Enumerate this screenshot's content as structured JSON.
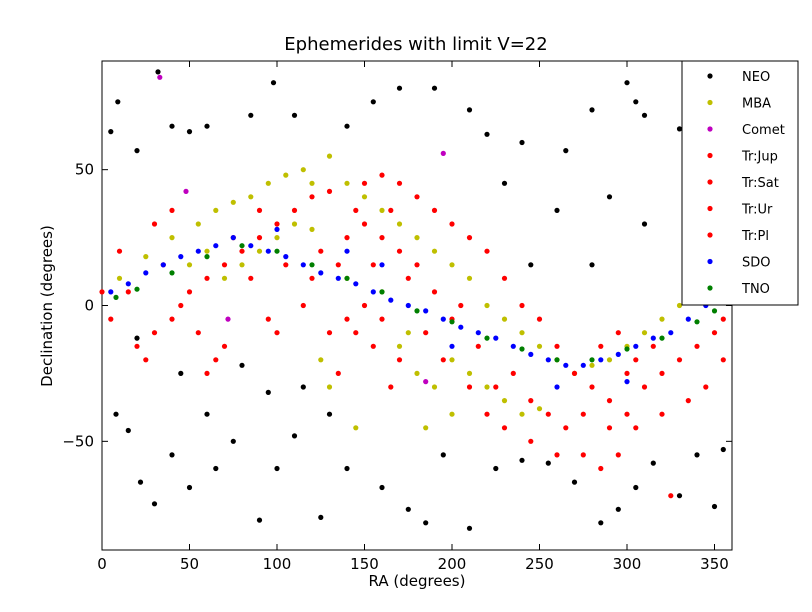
{
  "chart_data": {
    "type": "scatter",
    "title": "Ephemerides with limit V=22",
    "xlabel": "RA (degrees)",
    "ylabel": "Declination (degrees)",
    "xlim": [
      0,
      360
    ],
    "ylim": [
      -90,
      90
    ],
    "xticks": [
      0,
      50,
      100,
      150,
      200,
      250,
      300,
      350
    ],
    "yticks": [
      -50,
      0,
      50
    ],
    "grid": false,
    "legend_position": "top-right",
    "series": [
      {
        "name": "NEO",
        "color": "#000000",
        "points": [
          [
            5,
            64
          ],
          [
            9,
            75
          ],
          [
            20,
            57
          ],
          [
            32,
            86
          ],
          [
            40,
            66
          ],
          [
            50,
            64
          ],
          [
            60,
            66
          ],
          [
            85,
            70
          ],
          [
            98,
            82
          ],
          [
            110,
            70
          ],
          [
            140,
            66
          ],
          [
            155,
            75
          ],
          [
            170,
            80
          ],
          [
            190,
            80
          ],
          [
            210,
            72
          ],
          [
            220,
            63
          ],
          [
            240,
            60
          ],
          [
            265,
            57
          ],
          [
            280,
            72
          ],
          [
            300,
            82
          ],
          [
            305,
            75
          ],
          [
            310,
            70
          ],
          [
            330,
            65
          ],
          [
            345,
            62
          ],
          [
            350,
            50
          ],
          [
            8,
            -40
          ],
          [
            15,
            -46
          ],
          [
            22,
            -65
          ],
          [
            30,
            -73
          ],
          [
            40,
            -55
          ],
          [
            50,
            -67
          ],
          [
            65,
            -60
          ],
          [
            75,
            -50
          ],
          [
            90,
            -79
          ],
          [
            100,
            -60
          ],
          [
            110,
            -48
          ],
          [
            125,
            -78
          ],
          [
            140,
            -60
          ],
          [
            160,
            -67
          ],
          [
            175,
            -75
          ],
          [
            185,
            -80
          ],
          [
            195,
            -55
          ],
          [
            210,
            -82
          ],
          [
            225,
            -60
          ],
          [
            240,
            -57
          ],
          [
            255,
            -58
          ],
          [
            270,
            -65
          ],
          [
            285,
            -80
          ],
          [
            295,
            -75
          ],
          [
            305,
            -67
          ],
          [
            315,
            -58
          ],
          [
            330,
            -70
          ],
          [
            340,
            -55
          ],
          [
            350,
            -74
          ],
          [
            355,
            -53
          ],
          [
            20,
            -12
          ],
          [
            45,
            -25
          ],
          [
            60,
            -40
          ],
          [
            80,
            -22
          ],
          [
            95,
            -32
          ],
          [
            115,
            -30
          ],
          [
            130,
            -40
          ],
          [
            290,
            40
          ],
          [
            310,
            30
          ],
          [
            335,
            25
          ],
          [
            245,
            15
          ],
          [
            260,
            35
          ],
          [
            280,
            15
          ],
          [
            230,
            45
          ]
        ]
      },
      {
        "name": "MBA",
        "color": "#bfbf00",
        "points": [
          [
            10,
            10
          ],
          [
            25,
            18
          ],
          [
            40,
            25
          ],
          [
            55,
            30
          ],
          [
            65,
            35
          ],
          [
            75,
            38
          ],
          [
            85,
            40
          ],
          [
            95,
            45
          ],
          [
            105,
            48
          ],
          [
            115,
            50
          ],
          [
            120,
            45
          ],
          [
            130,
            55
          ],
          [
            140,
            45
          ],
          [
            150,
            40
          ],
          [
            160,
            35
          ],
          [
            170,
            30
          ],
          [
            180,
            25
          ],
          [
            190,
            20
          ],
          [
            200,
            15
          ],
          [
            210,
            10
          ],
          [
            220,
            0
          ],
          [
            230,
            -5
          ],
          [
            240,
            -10
          ],
          [
            250,
            -15
          ],
          [
            260,
            -20
          ],
          [
            270,
            -25
          ],
          [
            280,
            -22
          ],
          [
            290,
            -20
          ],
          [
            300,
            -15
          ],
          [
            310,
            -10
          ],
          [
            320,
            -5
          ],
          [
            330,
            0
          ],
          [
            340,
            5
          ],
          [
            350,
            8
          ],
          [
            100,
            25
          ],
          [
            110,
            30
          ],
          [
            120,
            28
          ],
          [
            90,
            20
          ],
          [
            80,
            15
          ],
          [
            70,
            10
          ],
          [
            200,
            -20
          ],
          [
            210,
            -25
          ],
          [
            220,
            -30
          ],
          [
            230,
            -35
          ],
          [
            240,
            -40
          ],
          [
            250,
            -38
          ],
          [
            180,
            -25
          ],
          [
            170,
            -15
          ],
          [
            190,
            -30
          ],
          [
            200,
            -40
          ],
          [
            60,
            20
          ],
          [
            50,
            15
          ],
          [
            140,
            10
          ],
          [
            160,
            5
          ],
          [
            175,
            -10
          ],
          [
            185,
            -45
          ],
          [
            145,
            -45
          ],
          [
            125,
            -20
          ],
          [
            130,
            -30
          ]
        ]
      },
      {
        "name": "Comet",
        "color": "#bf00bf",
        "points": [
          [
            33,
            84
          ],
          [
            48,
            42
          ],
          [
            195,
            56
          ],
          [
            72,
            -5
          ],
          [
            185,
            -28
          ]
        ]
      },
      {
        "name": "Tr:Jup",
        "color": "#ff0000",
        "points": [
          [
            140,
            25
          ],
          [
            150,
            30
          ],
          [
            160,
            25
          ],
          [
            170,
            20
          ],
          [
            155,
            15
          ],
          [
            145,
            35
          ],
          [
            165,
            35
          ],
          [
            175,
            10
          ],
          [
            135,
            15
          ],
          [
            150,
            0
          ],
          [
            160,
            -5
          ],
          [
            145,
            -10
          ],
          [
            140,
            -5
          ],
          [
            155,
            -15
          ],
          [
            170,
            -20
          ],
          [
            280,
            -30
          ],
          [
            290,
            -35
          ],
          [
            300,
            -25
          ],
          [
            285,
            -15
          ],
          [
            295,
            -10
          ],
          [
            305,
            -20
          ],
          [
            275,
            -40
          ],
          [
            290,
            -45
          ],
          [
            300,
            -40
          ],
          [
            310,
            -30
          ],
          [
            270,
            -25
          ],
          [
            315,
            -15
          ]
        ]
      },
      {
        "name": "Tr:Sat",
        "color": "#ff0000",
        "points": [
          [
            20,
            -15
          ],
          [
            30,
            -10
          ],
          [
            40,
            -5
          ],
          [
            50,
            5
          ],
          [
            60,
            10
          ],
          [
            70,
            15
          ],
          [
            80,
            20
          ],
          [
            90,
            25
          ],
          [
            100,
            30
          ],
          [
            110,
            35
          ],
          [
            120,
            40
          ],
          [
            130,
            42
          ],
          [
            180,
            40
          ],
          [
            190,
            35
          ],
          [
            200,
            30
          ],
          [
            210,
            25
          ],
          [
            220,
            20
          ],
          [
            230,
            10
          ],
          [
            240,
            0
          ],
          [
            250,
            -5
          ],
          [
            260,
            -15
          ],
          [
            320,
            -25
          ],
          [
            330,
            -20
          ],
          [
            340,
            -15
          ],
          [
            350,
            -10
          ],
          [
            355,
            -20
          ]
        ]
      },
      {
        "name": "Tr:Ur",
        "color": "#ff0000",
        "points": [
          [
            5,
            -5
          ],
          [
            15,
            5
          ],
          [
            25,
            -20
          ],
          [
            35,
            15
          ],
          [
            45,
            0
          ],
          [
            55,
            -10
          ],
          [
            65,
            -20
          ],
          [
            75,
            25
          ],
          [
            85,
            10
          ],
          [
            95,
            -5
          ],
          [
            105,
            15
          ],
          [
            115,
            0
          ],
          [
            125,
            20
          ],
          [
            135,
            -25
          ],
          [
            165,
            -30
          ],
          [
            185,
            -10
          ],
          [
            195,
            -20
          ],
          [
            205,
            0
          ],
          [
            215,
            -15
          ],
          [
            225,
            -30
          ],
          [
            235,
            -25
          ],
          [
            245,
            -35
          ],
          [
            255,
            -40
          ],
          [
            265,
            -45
          ],
          [
            275,
            -55
          ],
          [
            285,
            -60
          ],
          [
            295,
            -55
          ],
          [
            305,
            -45
          ]
        ]
      },
      {
        "name": "Tr:Pl",
        "color": "#ff0000",
        "points": [
          [
            0,
            5
          ],
          [
            10,
            20
          ],
          [
            30,
            30
          ],
          [
            40,
            35
          ],
          [
            60,
            -25
          ],
          [
            70,
            -15
          ],
          [
            90,
            35
          ],
          [
            100,
            -10
          ],
          [
            120,
            10
          ],
          [
            130,
            -10
          ],
          [
            150,
            45
          ],
          [
            160,
            48
          ],
          [
            170,
            45
          ],
          [
            180,
            15
          ],
          [
            190,
            5
          ],
          [
            200,
            -5
          ],
          [
            210,
            -30
          ],
          [
            220,
            -40
          ],
          [
            230,
            -45
          ],
          [
            245,
            -50
          ],
          [
            260,
            -55
          ],
          [
            320,
            -40
          ],
          [
            325,
            -70
          ],
          [
            335,
            -35
          ],
          [
            345,
            -30
          ],
          [
            355,
            -5
          ]
        ]
      },
      {
        "name": "SDO",
        "color": "#0000ff",
        "points": [
          [
            5,
            5
          ],
          [
            15,
            8
          ],
          [
            25,
            12
          ],
          [
            35,
            15
          ],
          [
            45,
            18
          ],
          [
            55,
            20
          ],
          [
            65,
            22
          ],
          [
            75,
            25
          ],
          [
            85,
            22
          ],
          [
            95,
            20
          ],
          [
            105,
            18
          ],
          [
            115,
            15
          ],
          [
            125,
            12
          ],
          [
            135,
            10
          ],
          [
            145,
            8
          ],
          [
            155,
            5
          ],
          [
            165,
            2
          ],
          [
            175,
            0
          ],
          [
            185,
            -2
          ],
          [
            195,
            -5
          ],
          [
            205,
            -8
          ],
          [
            215,
            -10
          ],
          [
            225,
            -12
          ],
          [
            235,
            -15
          ],
          [
            245,
            -18
          ],
          [
            255,
            -20
          ],
          [
            265,
            -22
          ],
          [
            275,
            -22
          ],
          [
            285,
            -20
          ],
          [
            295,
            -18
          ],
          [
            305,
            -15
          ],
          [
            315,
            -12
          ],
          [
            325,
            -10
          ],
          [
            335,
            -5
          ],
          [
            345,
            0
          ],
          [
            355,
            5
          ],
          [
            100,
            28
          ],
          [
            140,
            20
          ],
          [
            160,
            15
          ],
          [
            200,
            -15
          ],
          [
            260,
            -30
          ],
          [
            300,
            -28
          ]
        ]
      },
      {
        "name": "TNO",
        "color": "#007f00",
        "points": [
          [
            8,
            3
          ],
          [
            20,
            6
          ],
          [
            40,
            12
          ],
          [
            60,
            18
          ],
          [
            80,
            22
          ],
          [
            100,
            20
          ],
          [
            120,
            15
          ],
          [
            140,
            10
          ],
          [
            160,
            5
          ],
          [
            180,
            -2
          ],
          [
            200,
            -6
          ],
          [
            220,
            -12
          ],
          [
            240,
            -16
          ],
          [
            260,
            -20
          ],
          [
            280,
            -20
          ],
          [
            300,
            -16
          ],
          [
            320,
            -12
          ],
          [
            340,
            -6
          ],
          [
            350,
            -2
          ]
        ]
      }
    ]
  }
}
